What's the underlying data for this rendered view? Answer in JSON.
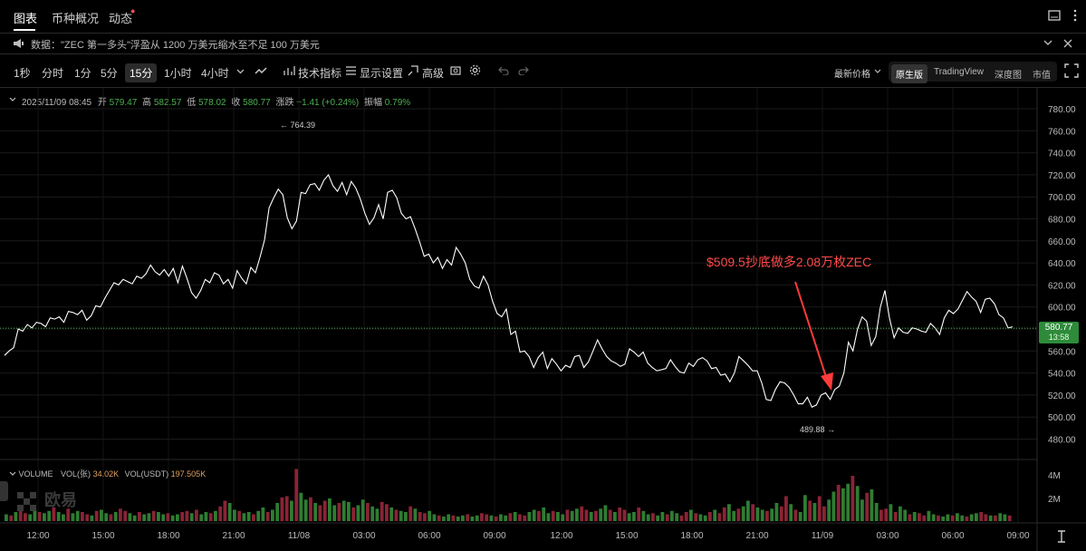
{
  "tabs": [
    {
      "label": "图表"
    },
    {
      "label": "币种概况"
    },
    {
      "label": "动态"
    }
  ],
  "announcement": "数据：\"ZEC 第一多头\"浮盈从 1200 万美元缩水至不足 100 万美元",
  "toolbar": {
    "intervals": [
      "1秒",
      "分时",
      "1分",
      "5分",
      "15分",
      "1小时",
      "4小时"
    ],
    "selected_interval": "15分",
    "indicators": "技术指标",
    "display": "显示设置",
    "advanced": "高级",
    "price_mode": "最新价格",
    "views": [
      "原生版",
      "TradingView",
      "深度图",
      "市值"
    ],
    "selected_view": "原生版"
  },
  "ohlc": {
    "date": "2025/11/09 08:45",
    "open_label": "开",
    "open": "579.47",
    "high_label": "高",
    "high": "582.57",
    "low_label": "低",
    "low": "578.02",
    "close_label": "收",
    "close": "580.77",
    "change_label": "涨跌",
    "change": "+1.41 (+0.24%)",
    "amp_label": "振幅",
    "amp": "0.79%"
  },
  "annotation": "$509.5抄底做多2.08万枚ZEC",
  "max_label": "← 764.39",
  "min_label": "489.88 →",
  "current_price": "580.77",
  "countdown": "13:58",
  "volume": {
    "label": "VOLUME",
    "vol_label": "VOL(张)",
    "vol": "34.02K",
    "usdt_label": "VOL(USDT)",
    "usdt": "197.505K"
  },
  "watermark": "欧易",
  "colors": {
    "up": "#2e7d32",
    "down": "#8b2336",
    "line": "#ffffff",
    "accent": "#ff3b3b"
  },
  "chart_data": {
    "type": "line",
    "yticks": [
      "780.00",
      "760.00",
      "740.00",
      "720.00",
      "700.00",
      "680.00",
      "660.00",
      "640.00",
      "620.00",
      "600.00",
      "580.00",
      "560.00",
      "540.00",
      "520.00",
      "500.00",
      "480.00"
    ],
    "vol_ticks": [
      "4M",
      "2M"
    ],
    "xticks": [
      "12:00",
      "15:00",
      "18:00",
      "21:00",
      "11/08",
      "03:00",
      "06:00",
      "09:00",
      "12:00",
      "15:00",
      "18:00",
      "21:00",
      "11/09",
      "03:00",
      "06:00",
      "09:00"
    ],
    "ylim": [
      470,
      790
    ],
    "values": [
      556,
      560,
      563,
      580,
      578,
      584,
      581,
      586,
      585,
      582,
      590,
      589,
      591,
      586,
      596,
      595,
      593,
      597,
      588,
      592,
      601,
      600,
      608,
      615,
      622,
      620,
      625,
      623,
      621,
      628,
      626,
      630,
      638,
      632,
      629,
      634,
      628,
      635,
      622,
      637,
      626,
      613,
      608,
      615,
      625,
      622,
      631,
      629,
      621,
      625,
      617,
      633,
      626,
      621,
      636,
      631,
      645,
      661,
      690,
      699,
      707,
      702,
      681,
      671,
      678,
      704,
      703,
      711,
      712,
      706,
      715,
      720,
      710,
      705,
      713,
      702,
      714,
      708,
      698,
      685,
      675,
      681,
      693,
      680,
      704,
      706,
      699,
      685,
      680,
      682,
      671,
      659,
      646,
      648,
      640,
      645,
      635,
      643,
      638,
      654,
      648,
      640,
      625,
      619,
      617,
      628,
      620,
      605,
      594,
      591,
      598,
      575,
      578,
      559,
      560,
      555,
      545,
      554,
      559,
      544,
      553,
      548,
      542,
      547,
      545,
      555,
      556,
      545,
      550,
      560,
      570,
      562,
      555,
      551,
      549,
      546,
      548,
      562,
      559,
      555,
      559,
      549,
      545,
      542,
      543,
      544,
      552,
      546,
      541,
      540,
      549,
      546,
      552,
      554,
      551,
      544,
      545,
      538,
      539,
      532,
      540,
      555,
      551,
      547,
      542,
      542,
      531,
      516,
      515,
      525,
      532,
      531,
      527,
      520,
      512,
      512,
      518,
      509,
      511,
      520,
      522,
      516,
      525,
      528,
      540,
      568,
      560,
      580,
      591,
      587,
      565,
      573,
      600,
      615,
      590,
      572,
      581,
      577,
      576,
      581,
      580,
      578,
      577,
      585,
      581,
      575,
      590,
      597,
      594,
      598,
      606,
      614,
      609,
      605,
      595,
      607,
      608,
      603,
      593,
      590,
      581,
      582
    ]
  },
  "volume_data": {
    "values": [
      0.6,
      0.5,
      0.8,
      0.9,
      0.7,
      0.6,
      1.0,
      0.8,
      0.7,
      0.9,
      1.2,
      0.8,
      0.6,
      1.1,
      0.7,
      0.9,
      0.8,
      0.6,
      0.5,
      0.9,
      1.0,
      0.7,
      0.6,
      0.8,
      1.1,
      0.9,
      0.7,
      0.5,
      0.8,
      0.6,
      0.7,
      0.9,
      0.8,
      0.6,
      0.7,
      0.5,
      0.6,
      0.8,
      0.9,
      0.7,
      1.0,
      0.6,
      0.8,
      0.7,
      0.9,
      1.3,
      1.8,
      1.6,
      1.0,
      0.9,
      0.7,
      0.8,
      0.6,
      0.9,
      1.2,
      0.8,
      1.0,
      1.6,
      2.1,
      2.2,
      1.8,
      4.6,
      2.5,
      1.9,
      2.1,
      1.6,
      1.4,
      1.8,
      2.0,
      1.4,
      1.6,
      1.8,
      1.7,
      1.2,
      1.4,
      1.9,
      1.6,
      1.3,
      1.1,
      1.7,
      1.5,
      1.2,
      1.0,
      0.9,
      0.8,
      1.3,
      1.1,
      0.8,
      0.7,
      0.9,
      0.6,
      0.5,
      0.4,
      0.6,
      0.5,
      0.4,
      0.5,
      0.6,
      0.4,
      0.5,
      0.7,
      0.6,
      0.5,
      0.4,
      0.6,
      0.5,
      0.7,
      0.8,
      0.6,
      0.5,
      0.8,
      1.0,
      0.9,
      1.2,
      0.7,
      0.9,
      0.8,
      0.6,
      1.0,
      0.9,
      1.1,
      1.3,
      1.0,
      0.8,
      0.9,
      1.1,
      1.4,
      1.0,
      0.8,
      1.2,
      1.0,
      0.7,
      0.8,
      1.2,
      0.9,
      0.6,
      0.7,
      0.5,
      0.8,
      0.6,
      0.9,
      0.7,
      0.5,
      0.8,
      1.0,
      0.7,
      0.6,
      0.5,
      0.8,
      1.0,
      0.7,
      1.2,
      1.5,
      0.9,
      1.1,
      1.3,
      1.8,
      1.5,
      1.2,
      1.0,
      0.9,
      1.1,
      1.6,
      1.3,
      2.2,
      1.5,
      1.0,
      0.8,
      2.3,
      1.8,
      1.6,
      2.2,
      1.3,
      1.9,
      2.6,
      3.2,
      2.9,
      3.3,
      4.0,
      3.1,
      1.9,
      2.5,
      2.8,
      1.6,
      1.0,
      1.1,
      1.5,
      0.8,
      1.3,
      1.0,
      0.6,
      0.8,
      0.7,
      0.5,
      0.9,
      0.6,
      0.5,
      0.4,
      0.6,
      0.5,
      0.7,
      0.5,
      0.4,
      0.6,
      0.7,
      0.8,
      0.6,
      0.5,
      0.5,
      0.7,
      0.6,
      0.5
    ]
  }
}
